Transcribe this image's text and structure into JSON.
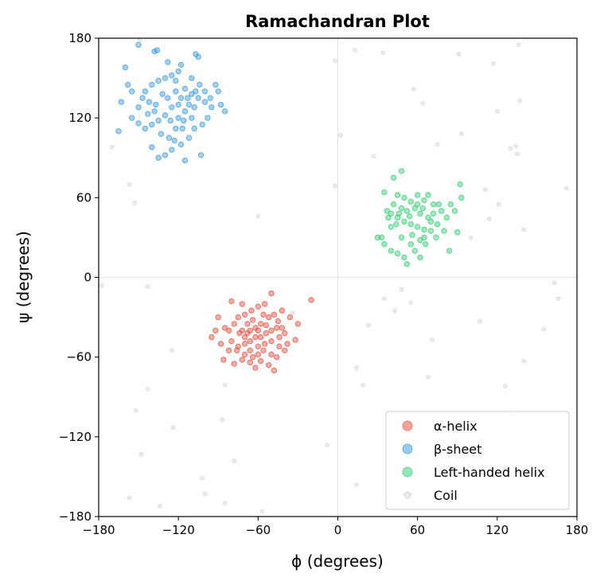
{
  "chart_data": {
    "type": "scatter",
    "title": "Ramachandran Plot",
    "xlabel": "ϕ (degrees)",
    "ylabel": "ψ (degrees)",
    "xlim": [
      -180,
      180
    ],
    "ylim": [
      -180,
      180
    ],
    "xticks": [
      "−180",
      "−120",
      "−60",
      "0",
      "60",
      "120",
      "180"
    ],
    "yticks": [
      "−180",
      "−120",
      "−60",
      "0",
      "60",
      "120",
      "180"
    ],
    "tick_values": [
      -180,
      -120,
      -60,
      0,
      60,
      120,
      180
    ],
    "grid": "zero-lines",
    "legend_position": "bottom-right",
    "series": [
      {
        "name": "α-helix",
        "color": "#e74c3c",
        "points": [
          [
            -80,
            -18
          ],
          [
            -90,
            -30
          ],
          [
            -95,
            -45
          ],
          [
            -20,
            -17
          ],
          [
            -30,
            -35
          ],
          [
            -32,
            -47
          ],
          [
            -50,
            -12
          ],
          [
            -55,
            -20
          ],
          [
            -60,
            -22
          ],
          [
            -65,
            -25
          ],
          [
            -70,
            -28
          ],
          [
            -75,
            -30
          ],
          [
            -78,
            -35
          ],
          [
            -82,
            -40
          ],
          [
            -85,
            -38
          ],
          [
            -72,
            -40
          ],
          [
            -68,
            -42
          ],
          [
            -62,
            -38
          ],
          [
            -58,
            -35
          ],
          [
            -52,
            -30
          ],
          [
            -48,
            -28
          ],
          [
            -45,
            -33
          ],
          [
            -42,
            -38
          ],
          [
            -40,
            -42
          ],
          [
            -44,
            -45
          ],
          [
            -50,
            -48
          ],
          [
            -55,
            -50
          ],
          [
            -60,
            -52
          ],
          [
            -66,
            -55
          ],
          [
            -70,
            -58
          ],
          [
            -75,
            -52
          ],
          [
            -80,
            -48
          ],
          [
            -86,
            -62
          ],
          [
            -78,
            -65
          ],
          [
            -72,
            -62
          ],
          [
            -64,
            -60
          ],
          [
            -58,
            -63
          ],
          [
            -52,
            -66
          ],
          [
            -48,
            -70
          ],
          [
            -46,
            -60
          ],
          [
            -40,
            -55
          ],
          [
            -38,
            -50
          ],
          [
            -62,
            -45
          ],
          [
            -66,
            -48
          ],
          [
            -70,
            -45
          ],
          [
            -74,
            -42
          ],
          [
            -58,
            -45
          ],
          [
            -54,
            -42
          ],
          [
            -50,
            -40
          ],
          [
            -46,
            -38
          ],
          [
            -64,
            -32
          ],
          [
            -68,
            -35
          ],
          [
            -56,
            -55
          ],
          [
            -60,
            -58
          ],
          [
            -76,
            -55
          ],
          [
            -82,
            -55
          ],
          [
            -88,
            -50
          ],
          [
            -92,
            -40
          ],
          [
            -36,
            -30
          ],
          [
            -42,
            -25
          ],
          [
            -56,
            -28
          ],
          [
            -72,
            -20
          ],
          [
            -66,
            -64
          ],
          [
            -50,
            -58
          ],
          [
            -44,
            -52
          ],
          [
            -62,
            -68
          ],
          [
            -70,
            -50
          ],
          [
            -54,
            -36
          ],
          [
            -60,
            -40
          ],
          [
            -66,
            -40
          ]
        ]
      },
      {
        "name": "β-sheet",
        "color": "#3498db",
        "points": [
          [
            -160,
            158
          ],
          [
            -150,
            175
          ],
          [
            -138,
            170
          ],
          [
            -136,
            171
          ],
          [
            -107,
            168
          ],
          [
            -105,
            166
          ],
          [
            -163,
            132
          ],
          [
            -165,
            110
          ],
          [
            -155,
            120
          ],
          [
            -150,
            128
          ],
          [
            -145,
            140
          ],
          [
            -140,
            145
          ],
          [
            -135,
            148
          ],
          [
            -130,
            150
          ],
          [
            -125,
            152
          ],
          [
            -120,
            155
          ],
          [
            -115,
            142
          ],
          [
            -110,
            138
          ],
          [
            -105,
            135
          ],
          [
            -100,
            132
          ],
          [
            -95,
            128
          ],
          [
            -90,
            140
          ],
          [
            -88,
            130
          ],
          [
            -85,
            125
          ],
          [
            -98,
            120
          ],
          [
            -102,
            115
          ],
          [
            -108,
            112
          ],
          [
            -112,
            105
          ],
          [
            -118,
            100
          ],
          [
            -125,
            96
          ],
          [
            -130,
            92
          ],
          [
            -135,
            90
          ],
          [
            -140,
            98
          ],
          [
            -115,
            88
          ],
          [
            -103,
            92
          ],
          [
            -110,
            120
          ],
          [
            -115,
            125
          ],
          [
            -120,
            130
          ],
          [
            -125,
            128
          ],
          [
            -128,
            135
          ],
          [
            -132,
            138
          ],
          [
            -122,
            140
          ],
          [
            -118,
            135
          ],
          [
            -112,
            130
          ],
          [
            -108,
            128
          ],
          [
            -130,
            122
          ],
          [
            -135,
            118
          ],
          [
            -140,
            115
          ],
          [
            -145,
            112
          ],
          [
            -150,
            116
          ],
          [
            -155,
            140
          ],
          [
            -158,
            145
          ],
          [
            -142,
            132
          ],
          [
            -138,
            125
          ],
          [
            -126,
            118
          ],
          [
            -122,
            112
          ],
          [
            -116,
            118
          ],
          [
            -104,
            145
          ],
          [
            -100,
            140
          ],
          [
            -96,
            135
          ],
          [
            -92,
            145
          ],
          [
            -118,
            160
          ],
          [
            -128,
            162
          ],
          [
            -122,
            148
          ],
          [
            -133,
            108
          ],
          [
            -127,
            105
          ],
          [
            -120,
            120
          ],
          [
            -113,
            135
          ],
          [
            -107,
            140
          ],
          [
            -137,
            130
          ],
          [
            -143,
            123
          ],
          [
            -147,
            135
          ],
          [
            -117,
            112
          ],
          [
            -123,
            103
          ],
          [
            -110,
            150
          ]
        ]
      },
      {
        "name": "Left-handed helix",
        "color": "#2ecc71",
        "points": [
          [
            42,
            75
          ],
          [
            48,
            80
          ],
          [
            92,
            70
          ],
          [
            93,
            60
          ],
          [
            35,
            64
          ],
          [
            37,
            50
          ],
          [
            33,
            30
          ],
          [
            30,
            30
          ],
          [
            35,
            25
          ],
          [
            40,
            20
          ],
          [
            45,
            18
          ],
          [
            50,
            15
          ],
          [
            52,
            10
          ],
          [
            55,
            25
          ],
          [
            58,
            20
          ],
          [
            62,
            15
          ],
          [
            65,
            30
          ],
          [
            70,
            35
          ],
          [
            75,
            40
          ],
          [
            80,
            35
          ],
          [
            84,
            20
          ],
          [
            90,
            34
          ],
          [
            88,
            50
          ],
          [
            85,
            55
          ],
          [
            82,
            45
          ],
          [
            78,
            50
          ],
          [
            72,
            55
          ],
          [
            68,
            62
          ],
          [
            65,
            58
          ],
          [
            60,
            62
          ],
          [
            55,
            57
          ],
          [
            50,
            60
          ],
          [
            45,
            62
          ],
          [
            42,
            55
          ],
          [
            40,
            48
          ],
          [
            45,
            45
          ],
          [
            50,
            42
          ],
          [
            55,
            40
          ],
          [
            60,
            38
          ],
          [
            65,
            36
          ],
          [
            70,
            42
          ],
          [
            68,
            45
          ],
          [
            62,
            48
          ],
          [
            58,
            52
          ],
          [
            52,
            50
          ],
          [
            48,
            52
          ],
          [
            44,
            40
          ],
          [
            40,
            38
          ],
          [
            48,
            30
          ],
          [
            56,
            32
          ],
          [
            62,
            28
          ],
          [
            66,
            25
          ],
          [
            74,
            30
          ],
          [
            76,
            55
          ],
          [
            64,
            52
          ],
          [
            54,
            46
          ],
          [
            46,
            48
          ],
          [
            38,
            45
          ],
          [
            72,
            48
          ],
          [
            60,
            55
          ]
        ]
      },
      {
        "name": "Coil",
        "color": "#bdc3c7",
        "points": [
          [
            -149,
            179
          ],
          [
            -2,
            163
          ],
          [
            13,
            171
          ],
          [
            34,
            169
          ],
          [
            91,
            168
          ],
          [
            117,
            161
          ],
          [
            136,
            175
          ],
          [
            57,
            142
          ],
          [
            64,
            131
          ],
          [
            120,
            125
          ],
          [
            137,
            133
          ],
          [
            -170,
            98
          ],
          [
            2,
            107
          ],
          [
            27,
            91
          ],
          [
            75,
            100
          ],
          [
            93,
            108
          ],
          [
            130,
            97
          ],
          [
            134,
            99
          ],
          [
            135,
            93
          ],
          [
            -157,
            70
          ],
          [
            -153,
            56
          ],
          [
            -60,
            46
          ],
          [
            -2,
            69
          ],
          [
            111,
            66
          ],
          [
            121,
            55
          ],
          [
            114,
            44
          ],
          [
            140,
            36
          ],
          [
            172,
            67
          ],
          [
            100,
            30
          ],
          [
            -178,
            -6
          ],
          [
            -143,
            -7
          ],
          [
            48,
            -9
          ],
          [
            35,
            -16
          ],
          [
            43,
            -25
          ],
          [
            55,
            -19
          ],
          [
            -34,
            -27
          ],
          [
            23,
            -36
          ],
          [
            107,
            -33
          ],
          [
            163,
            -4
          ],
          [
            166,
            -16
          ],
          [
            155,
            -39
          ],
          [
            71,
            -47
          ],
          [
            -125,
            -55
          ],
          [
            14,
            -68
          ],
          [
            140,
            -63
          ],
          [
            19,
            -81
          ],
          [
            68,
            -75
          ],
          [
            -143,
            -84
          ],
          [
            -85,
            -81
          ],
          [
            126,
            -82
          ],
          [
            -152,
            -100
          ],
          [
            -124,
            -113
          ],
          [
            -87,
            -107
          ],
          [
            132,
            -103
          ],
          [
            -148,
            -133
          ],
          [
            -8,
            -126
          ],
          [
            -78,
            -138
          ],
          [
            -102,
            -151
          ],
          [
            14,
            -156
          ],
          [
            -157,
            -166
          ],
          [
            -134,
            -172
          ],
          [
            -100,
            -163
          ],
          [
            -85,
            -170
          ],
          [
            -57,
            -176
          ]
        ]
      }
    ]
  }
}
